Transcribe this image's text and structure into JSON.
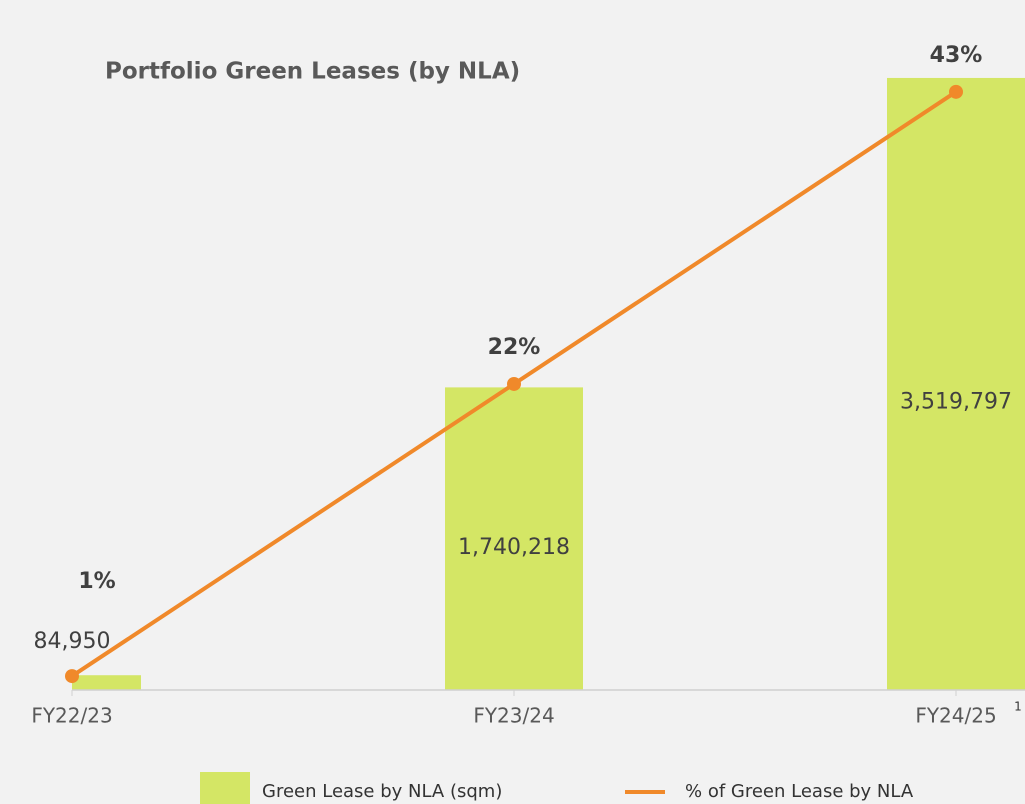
{
  "chart_data": {
    "type": "bar_line",
    "title": "Portfolio Green Leases (by NLA)",
    "categories": [
      "FY22/23",
      "FY23/24",
      "FY24/25"
    ],
    "footnote": "1",
    "series": [
      {
        "name": "Green Lease by NLA (sqm)",
        "type": "bar",
        "color": "#d4e665",
        "values": [
          84950,
          1740218,
          3519797
        ],
        "value_labels": [
          "84,950",
          "1,740,218",
          "3,519,797"
        ]
      },
      {
        "name": "% of Green Lease by NLA",
        "type": "line",
        "axis": "y2",
        "color": "#f0892a",
        "values": [
          1,
          22,
          43
        ],
        "value_labels": [
          "1%",
          "22%",
          "43%"
        ]
      }
    ],
    "ylim": [
      0,
      3600000
    ],
    "y2lim": [
      0,
      45
    ]
  }
}
